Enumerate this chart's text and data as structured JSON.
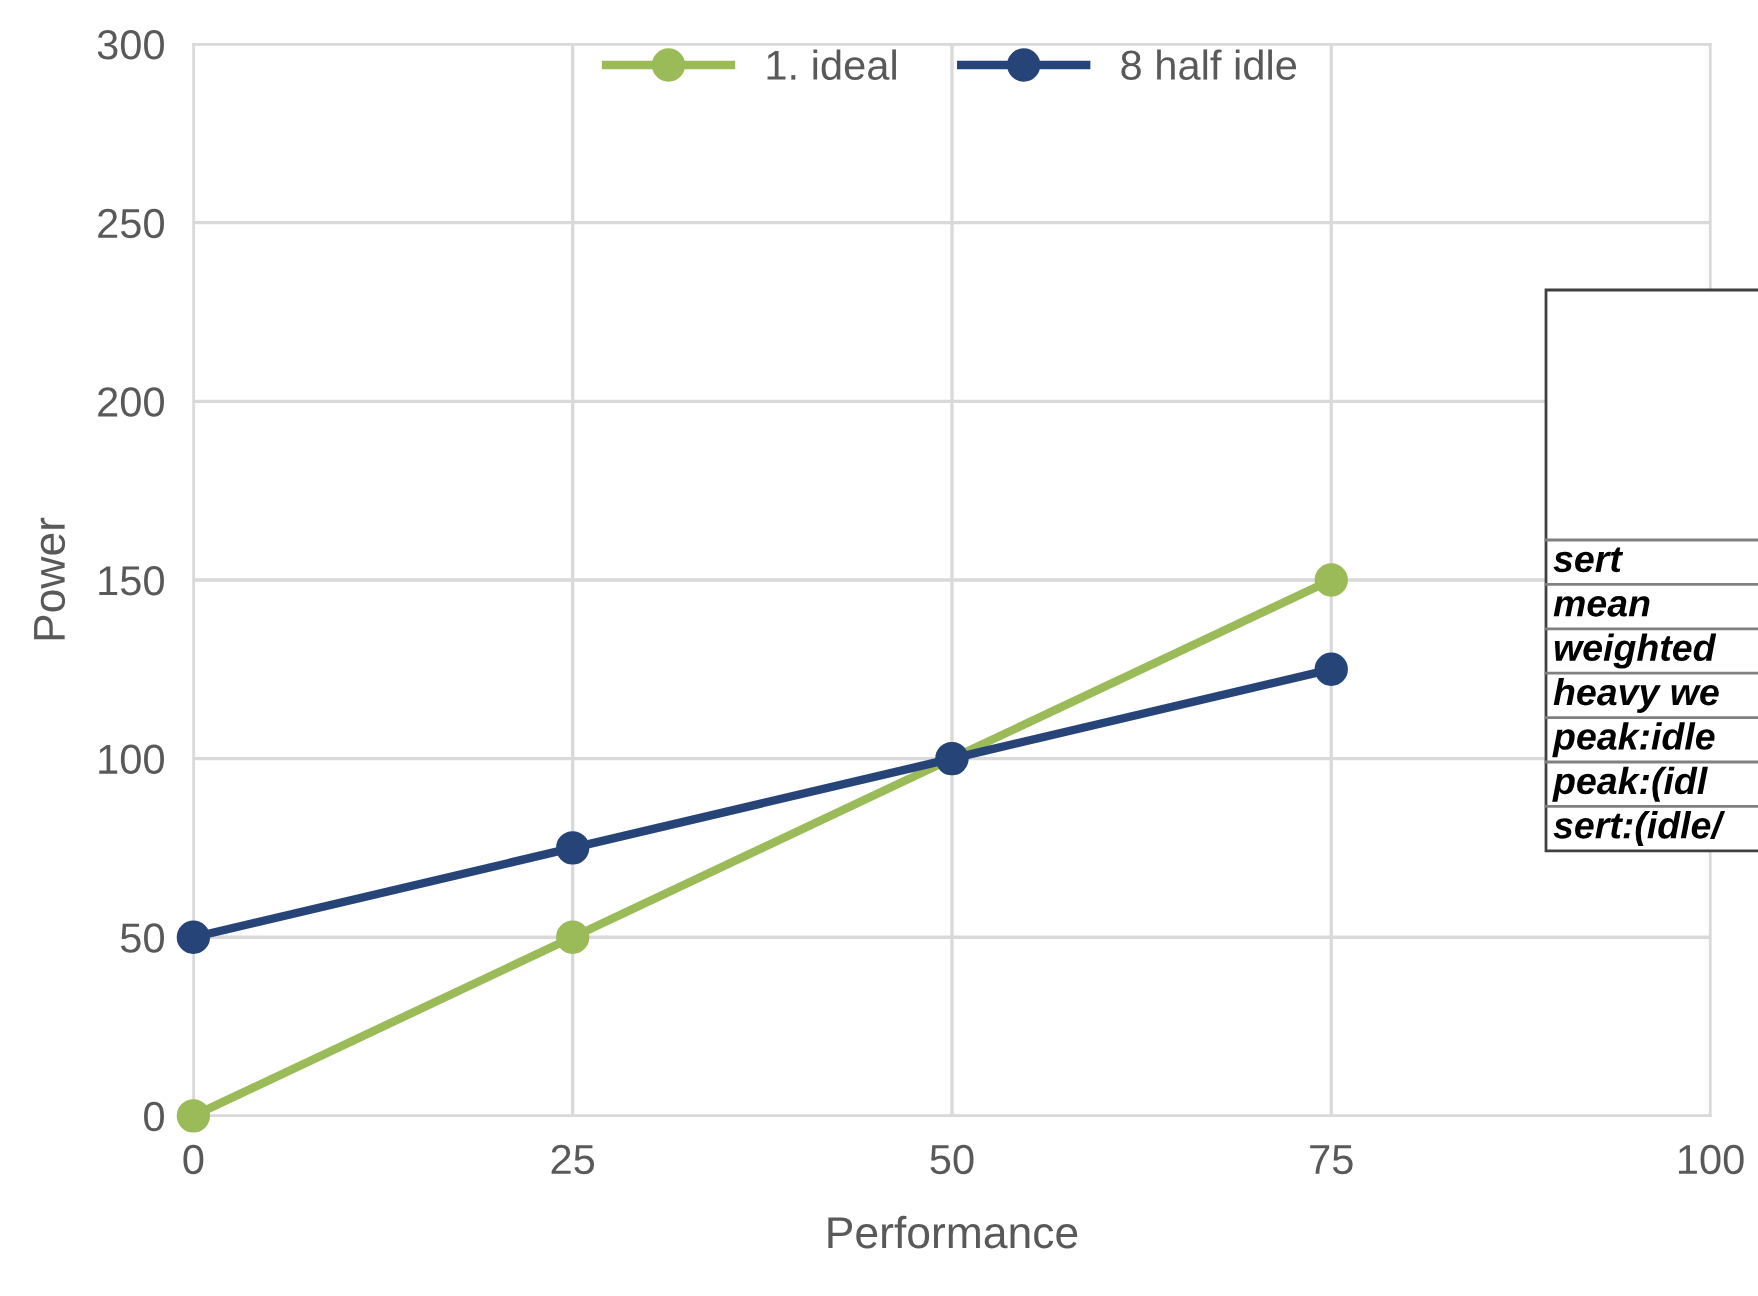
{
  "chart_data": {
    "type": "line",
    "xlabel": "Performance",
    "ylabel": "Power",
    "x": [
      0,
      25,
      50,
      75
    ],
    "series": [
      {
        "name": "1. ideal",
        "color": "#9bbb59",
        "values": [
          0,
          50,
          100,
          150
        ]
      },
      {
        "name": "8 half idle",
        "color": "#264478",
        "values": [
          50,
          75,
          100,
          125
        ]
      }
    ],
    "xlim": [
      0,
      100
    ],
    "xticks": [
      0,
      25,
      50,
      75,
      100
    ],
    "ylim": [
      0,
      300
    ],
    "yticks": [
      0,
      50,
      100,
      150,
      200,
      250,
      300
    ],
    "grid": true,
    "legend": "top",
    "marker": "circle",
    "line_style": "solid",
    "annotations": [
      "sert",
      "mean",
      "weighted",
      "heavy we",
      "peak:idle",
      "peak:(idl",
      "sert:(idle/"
    ]
  }
}
